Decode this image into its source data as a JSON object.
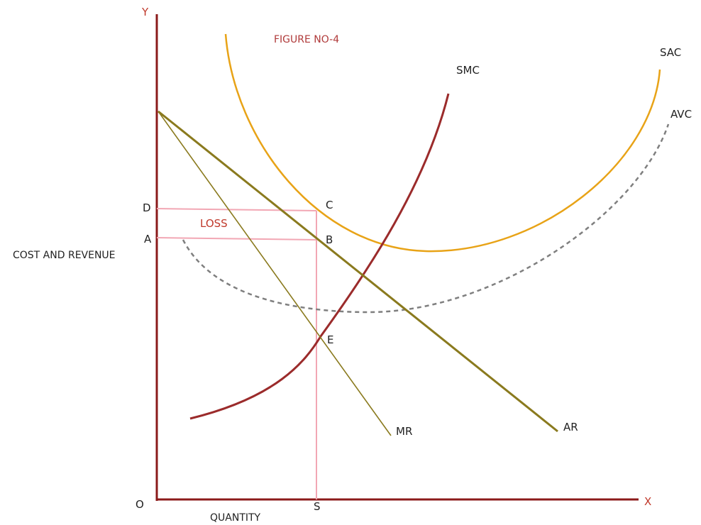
{
  "figure": {
    "title": "FIGURE NO-4",
    "y_axis_label": "COST AND REVENUE",
    "x_axis_label": "QUANTITY",
    "axis_letter_y": "Y",
    "axis_letter_x": "X",
    "origin": "O"
  },
  "curves": {
    "smc": "SMC",
    "sac": "SAC",
    "avc": "AVC",
    "mr": "MR",
    "ar": "AR"
  },
  "points": {
    "d": "D",
    "a": "A",
    "c": "C",
    "b": "B",
    "e": "E",
    "s": "S"
  },
  "region": {
    "loss": "LOSS"
  },
  "colors": {
    "axes": "#8b1a1a",
    "smc": "#9b2b2b",
    "sac": "#e8a317",
    "avc": "#7f7f7f",
    "ar": "#8a7a1e",
    "mr": "#8a7a1e",
    "guides": "#f2a7b4",
    "loss_text": "#c0392b",
    "title_text": "#b03a3a"
  }
}
